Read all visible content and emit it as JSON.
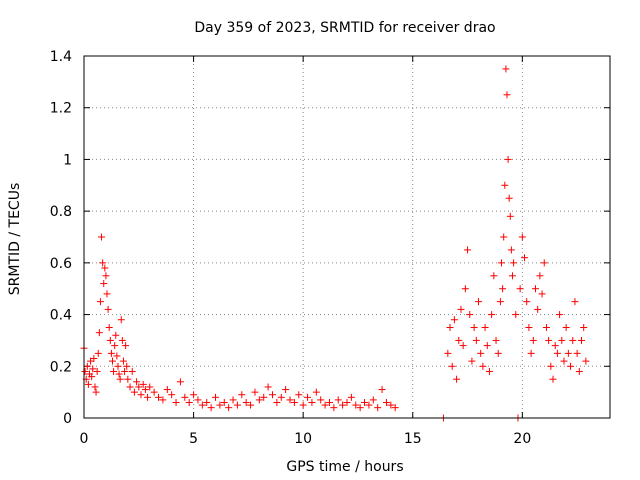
{
  "chart_data": {
    "type": "scatter",
    "title": "Day 359 of 2023, SRMTID for receiver drao",
    "xlabel": "GPS time / hours",
    "ylabel": "SRMTID / TECUs",
    "xlim": [
      0,
      24
    ],
    "ylim": [
      0,
      1.4
    ],
    "x_ticks": [
      0,
      5,
      10,
      15,
      20
    ],
    "x_tick_labels": [
      "0",
      "5",
      "10",
      "15",
      "20"
    ],
    "y_ticks": [
      0,
      0.2,
      0.4,
      0.6,
      0.8,
      1.0,
      1.2,
      1.4
    ],
    "y_tick_labels": [
      "0",
      "0.2",
      "0.4",
      "0.6",
      "0.8",
      "1",
      "1.2",
      "1.4"
    ],
    "grid": true,
    "marker": "+",
    "color": "#ff0000",
    "series": [
      {
        "name": "SRMTID",
        "x": [
          0.0,
          0.05,
          0.1,
          0.15,
          0.2,
          0.25,
          0.3,
          0.35,
          0.4,
          0.45,
          0.5,
          0.55,
          0.6,
          0.65,
          0.7,
          0.75,
          0.8,
          0.85,
          0.9,
          0.95,
          1.0,
          1.05,
          1.1,
          1.15,
          1.2,
          1.25,
          1.3,
          1.35,
          1.4,
          1.45,
          1.5,
          1.55,
          1.6,
          1.65,
          1.7,
          1.75,
          1.8,
          1.85,
          1.9,
          1.95,
          2.0,
          2.1,
          2.2,
          2.3,
          2.4,
          2.5,
          2.6,
          2.7,
          2.8,
          2.9,
          3.0,
          3.2,
          3.4,
          3.6,
          3.8,
          4.0,
          4.2,
          4.4,
          4.6,
          4.8,
          5.0,
          5.2,
          5.4,
          5.6,
          5.8,
          6.0,
          6.2,
          6.4,
          6.6,
          6.8,
          7.0,
          7.2,
          7.4,
          7.6,
          7.8,
          8.0,
          8.2,
          8.4,
          8.6,
          8.8,
          9.0,
          9.2,
          9.4,
          9.6,
          9.8,
          10.0,
          10.2,
          10.4,
          10.6,
          10.8,
          11.0,
          11.2,
          11.4,
          11.6,
          11.8,
          12.0,
          12.2,
          12.4,
          12.6,
          12.8,
          13.0,
          13.2,
          13.4,
          13.6,
          13.8,
          14.0,
          14.2,
          16.4,
          16.6,
          16.7,
          16.8,
          16.9,
          17.0,
          17.1,
          17.2,
          17.3,
          17.4,
          17.5,
          17.6,
          17.7,
          17.8,
          17.9,
          18.0,
          18.1,
          18.2,
          18.3,
          18.4,
          18.5,
          18.6,
          18.7,
          18.8,
          18.9,
          19.0,
          19.05,
          19.1,
          19.15,
          19.2,
          19.25,
          19.3,
          19.35,
          19.4,
          19.45,
          19.5,
          19.55,
          19.6,
          19.7,
          19.8,
          19.9,
          20.0,
          20.1,
          20.2,
          20.3,
          20.4,
          20.5,
          20.6,
          20.7,
          20.8,
          20.9,
          21.0,
          21.1,
          21.2,
          21.3,
          21.4,
          21.5,
          21.6,
          21.7,
          21.8,
          21.9,
          22.0,
          22.1,
          22.2,
          22.3,
          22.4,
          22.5,
          22.6,
          22.7,
          22.8,
          22.9
        ],
        "y": [
          0.27,
          0.18,
          0.15,
          0.2,
          0.13,
          0.17,
          0.22,
          0.16,
          0.19,
          0.23,
          0.12,
          0.1,
          0.18,
          0.25,
          0.33,
          0.45,
          0.7,
          0.6,
          0.52,
          0.58,
          0.55,
          0.48,
          0.42,
          0.35,
          0.3,
          0.25,
          0.22,
          0.18,
          0.28,
          0.32,
          0.24,
          0.2,
          0.17,
          0.15,
          0.38,
          0.3,
          0.22,
          0.18,
          0.28,
          0.2,
          0.15,
          0.12,
          0.18,
          0.1,
          0.14,
          0.12,
          0.09,
          0.13,
          0.11,
          0.08,
          0.12,
          0.1,
          0.08,
          0.07,
          0.11,
          0.09,
          0.06,
          0.14,
          0.08,
          0.06,
          0.09,
          0.07,
          0.05,
          0.06,
          0.04,
          0.08,
          0.05,
          0.06,
          0.04,
          0.07,
          0.05,
          0.09,
          0.06,
          0.05,
          0.1,
          0.07,
          0.08,
          0.12,
          0.09,
          0.06,
          0.08,
          0.11,
          0.07,
          0.06,
          0.09,
          0.05,
          0.08,
          0.06,
          0.1,
          0.07,
          0.05,
          0.06,
          0.04,
          0.07,
          0.05,
          0.06,
          0.08,
          0.05,
          0.04,
          0.06,
          0.05,
          0.07,
          0.04,
          0.11,
          0.06,
          0.05,
          0.04,
          0.0,
          0.25,
          0.35,
          0.2,
          0.38,
          0.15,
          0.3,
          0.42,
          0.28,
          0.5,
          0.65,
          0.4,
          0.22,
          0.35,
          0.3,
          0.45,
          0.25,
          0.2,
          0.35,
          0.28,
          0.18,
          0.4,
          0.55,
          0.3,
          0.25,
          0.45,
          0.6,
          0.5,
          0.7,
          0.9,
          1.35,
          1.25,
          1.0,
          0.85,
          0.78,
          0.65,
          0.55,
          0.6,
          0.4,
          0.0,
          0.5,
          0.7,
          0.62,
          0.45,
          0.35,
          0.25,
          0.3,
          0.5,
          0.42,
          0.55,
          0.48,
          0.6,
          0.35,
          0.3,
          0.2,
          0.15,
          0.28,
          0.25,
          0.4,
          0.3,
          0.22,
          0.35,
          0.25,
          0.2,
          0.3,
          0.45,
          0.25,
          0.18,
          0.3,
          0.35,
          0.22
        ]
      }
    ]
  }
}
